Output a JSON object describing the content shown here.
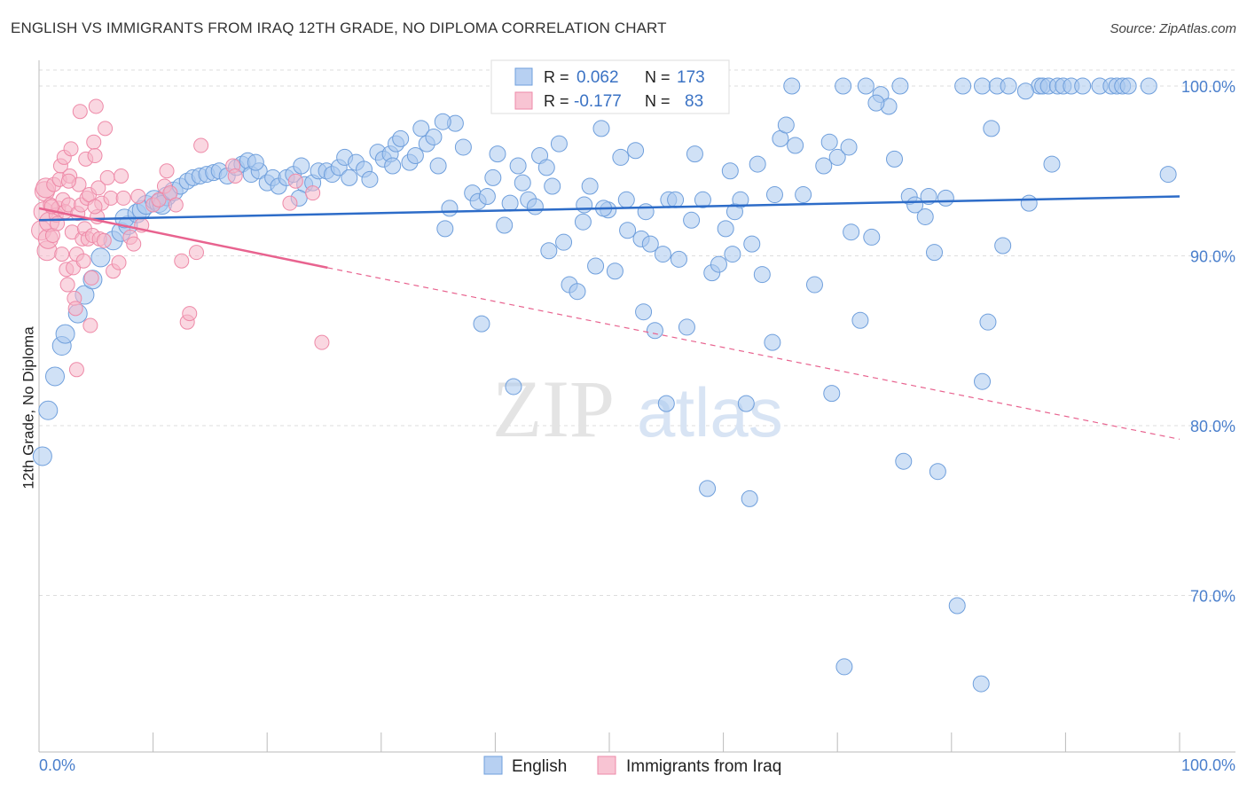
{
  "header": {
    "title": "ENGLISH VS IMMIGRANTS FROM IRAQ 12TH GRADE, NO DIPLOMA CORRELATION CHART",
    "source": "Source: ZipAtlas.com"
  },
  "watermark": {
    "zip": "ZIP",
    "atlas": "atlas"
  },
  "colors": {
    "english_fill": "#a9c8ef",
    "english_stroke": "#6f9fdc",
    "english_line": "#2d6cc8",
    "iraq_fill": "#f6b6c9",
    "iraq_stroke": "#ee8aa8",
    "iraq_line": "#e8638f",
    "tick_label": "#4a7fcc",
    "grid": "#dddddd"
  },
  "legend": {
    "english": {
      "r_label": "R =",
      "r_value": "0.062",
      "n_label": "N =",
      "n_value": "173"
    },
    "iraq": {
      "r_label": "R =",
      "r_value": "-0.177",
      "n_label": "N =",
      "n_value": "83"
    }
  },
  "bottom_legend": {
    "english": "English",
    "iraq": "Immigrants from Iraq"
  },
  "chart_data": {
    "type": "scatter",
    "title": "ENGLISH VS IMMIGRANTS FROM IRAQ 12TH GRADE, NO DIPLOMA CORRELATION CHART",
    "xlabel": "",
    "ylabel": "12th Grade, No Diploma",
    "xlim": [
      0,
      100
    ],
    "ylim": [
      62,
      103
    ],
    "x_tick_labels": [
      "0.0%",
      "100.0%"
    ],
    "y_ticks": [
      {
        "value": 100,
        "label": "100.0%"
      },
      {
        "value": 90,
        "label": "90.0%"
      },
      {
        "value": 80,
        "label": "80.0%"
      },
      {
        "value": 70,
        "label": "70.0%"
      }
    ],
    "series": [
      {
        "name": "English",
        "r": 0.062,
        "n": 173,
        "trend": {
          "x0": 0,
          "y0": 92.1,
          "x1": 100,
          "y1": 93.5
        },
        "points": [
          [
            0.3,
            78.2
          ],
          [
            0.8,
            80.9
          ],
          [
            1.4,
            82.9
          ],
          [
            2.0,
            84.7
          ],
          [
            2.3,
            85.4
          ],
          [
            3.4,
            86.6
          ],
          [
            4.0,
            87.7
          ],
          [
            4.7,
            88.6
          ],
          [
            5.4,
            89.9
          ],
          [
            6.5,
            90.9
          ],
          [
            7.2,
            91.4
          ],
          [
            7.8,
            91.8
          ],
          [
            7.5,
            92.2
          ],
          [
            8.6,
            92.5
          ],
          [
            9.0,
            92.7
          ],
          [
            9.4,
            93.0
          ],
          [
            10.1,
            93.3
          ],
          [
            10.5,
            93.1
          ],
          [
            11.2,
            93.5
          ],
          [
            10.8,
            93.0
          ],
          [
            11.8,
            93.8
          ],
          [
            12.4,
            94.1
          ],
          [
            13.0,
            94.4
          ],
          [
            13.5,
            94.6
          ],
          [
            14.1,
            94.7
          ],
          [
            14.7,
            94.8
          ],
          [
            15.3,
            94.9
          ],
          [
            15.8,
            95.0
          ],
          [
            16.5,
            94.7
          ],
          [
            17.3,
            95.2
          ],
          [
            17.8,
            95.4
          ],
          [
            18.3,
            95.6
          ],
          [
            18.6,
            94.8
          ],
          [
            19.3,
            95.0
          ],
          [
            19.0,
            95.5
          ],
          [
            20.0,
            94.3
          ],
          [
            20.5,
            94.6
          ],
          [
            21.0,
            94.1
          ],
          [
            21.7,
            94.6
          ],
          [
            22.3,
            94.8
          ],
          [
            23.0,
            95.3
          ],
          [
            23.3,
            94.2
          ],
          [
            24.0,
            94.3
          ],
          [
            24.5,
            95.0
          ],
          [
            25.2,
            95.0
          ],
          [
            25.7,
            94.8
          ],
          [
            26.3,
            95.2
          ],
          [
            26.8,
            95.8
          ],
          [
            27.2,
            94.6
          ],
          [
            27.8,
            95.5
          ],
          [
            28.5,
            95.1
          ],
          [
            29.0,
            94.5
          ],
          [
            29.7,
            96.1
          ],
          [
            30.2,
            95.7
          ],
          [
            30.8,
            96.0
          ],
          [
            31.3,
            96.6
          ],
          [
            31.7,
            96.9
          ],
          [
            32.5,
            95.5
          ],
          [
            33.0,
            95.9
          ],
          [
            33.5,
            97.5
          ],
          [
            34.0,
            96.6
          ],
          [
            34.6,
            97.0
          ],
          [
            35.0,
            95.3
          ],
          [
            35.6,
            91.6
          ],
          [
            36.0,
            92.8
          ],
          [
            36.5,
            97.8
          ],
          [
            37.2,
            96.4
          ],
          [
            38.0,
            93.7
          ],
          [
            38.5,
            93.2
          ],
          [
            39.3,
            93.5
          ],
          [
            39.8,
            94.6
          ],
          [
            40.2,
            96.0
          ],
          [
            40.8,
            91.8
          ],
          [
            41.3,
            93.1
          ],
          [
            42.0,
            95.3
          ],
          [
            42.4,
            94.3
          ],
          [
            42.9,
            93.3
          ],
          [
            43.5,
            92.9
          ],
          [
            43.9,
            95.9
          ],
          [
            44.5,
            95.2
          ],
          [
            45.0,
            94.1
          ],
          [
            45.6,
            96.6
          ],
          [
            46.0,
            90.8
          ],
          [
            46.5,
            88.3
          ],
          [
            47.2,
            87.9
          ],
          [
            47.7,
            92.0
          ],
          [
            48.3,
            94.1
          ],
          [
            48.8,
            89.4
          ],
          [
            49.3,
            97.5
          ],
          [
            49.9,
            92.7
          ],
          [
            50.5,
            89.1
          ],
          [
            51.0,
            95.8
          ],
          [
            51.5,
            93.3
          ],
          [
            52.3,
            96.2
          ],
          [
            52.8,
            91.0
          ],
          [
            53.2,
            92.6
          ],
          [
            53.6,
            90.7
          ],
          [
            54.0,
            85.6
          ],
          [
            54.7,
            90.1
          ],
          [
            55.2,
            93.3
          ],
          [
            56.1,
            89.8
          ],
          [
            56.8,
            85.8
          ],
          [
            57.5,
            96.0
          ],
          [
            58.2,
            93.3
          ],
          [
            59.0,
            89.0
          ],
          [
            60.2,
            91.6
          ],
          [
            60.6,
            95.0
          ],
          [
            61.0,
            92.6
          ],
          [
            61.5,
            93.3
          ],
          [
            62.5,
            90.7
          ],
          [
            63.0,
            95.4
          ],
          [
            64.5,
            93.6
          ],
          [
            65.0,
            96.9
          ],
          [
            65.5,
            97.7
          ],
          [
            66.0,
            100.0
          ],
          [
            67.0,
            93.6
          ],
          [
            68.0,
            88.3
          ],
          [
            69.3,
            96.7
          ],
          [
            70.0,
            95.8
          ],
          [
            70.5,
            100.0
          ],
          [
            71.0,
            96.4
          ],
          [
            72.0,
            86.2
          ],
          [
            72.5,
            100.0
          ],
          [
            73.0,
            91.1
          ],
          [
            73.8,
            99.5
          ],
          [
            74.5,
            98.8
          ],
          [
            75.5,
            100.0
          ],
          [
            75.0,
            95.7
          ],
          [
            76.3,
            93.5
          ],
          [
            76.8,
            93.0
          ],
          [
            77.7,
            92.3
          ],
          [
            78.0,
            93.5
          ],
          [
            78.5,
            90.2
          ],
          [
            79.5,
            93.4
          ],
          [
            81.0,
            100.0
          ],
          [
            82.7,
            100.0
          ],
          [
            83.5,
            97.5
          ],
          [
            84.0,
            100.0
          ],
          [
            84.5,
            90.6
          ],
          [
            85.0,
            100.0
          ],
          [
            87.7,
            100.0
          ],
          [
            88.0,
            100.0
          ],
          [
            88.5,
            100.0
          ],
          [
            89.3,
            100.0
          ],
          [
            89.8,
            100.0
          ],
          [
            90.5,
            100.0
          ],
          [
            91.5,
            100.0
          ],
          [
            93.0,
            100.0
          ],
          [
            94.0,
            100.0
          ],
          [
            94.5,
            100.0
          ],
          [
            95.0,
            100.0
          ],
          [
            95.5,
            100.0
          ],
          [
            97.3,
            100.0
          ],
          [
            99.0,
            94.8
          ],
          [
            35.4,
            97.9
          ],
          [
            44.7,
            90.3
          ],
          [
            22.8,
            93.4
          ],
          [
            31.0,
            95.3
          ],
          [
            38.8,
            86.0
          ],
          [
            41.6,
            82.3
          ],
          [
            55.0,
            81.3
          ],
          [
            58.6,
            76.3
          ],
          [
            62.0,
            81.3
          ],
          [
            69.5,
            81.9
          ],
          [
            75.8,
            77.9
          ],
          [
            78.8,
            77.3
          ],
          [
            80.5,
            69.4
          ],
          [
            82.6,
            64.8
          ],
          [
            83.2,
            86.1
          ],
          [
            86.5,
            99.7
          ],
          [
            88.8,
            95.4
          ],
          [
            82.7,
            82.6
          ],
          [
            66.3,
            96.5
          ],
          [
            73.4,
            99.0
          ],
          [
            71.2,
            91.4
          ],
          [
            60.8,
            90.1
          ],
          [
            55.8,
            93.3
          ],
          [
            57.2,
            92.1
          ],
          [
            53.0,
            86.7
          ],
          [
            51.6,
            91.5
          ],
          [
            64.3,
            84.9
          ],
          [
            49.5,
            92.8
          ],
          [
            47.8,
            93.0
          ],
          [
            86.8,
            93.1
          ],
          [
            68.8,
            95.3
          ],
          [
            63.4,
            88.9
          ],
          [
            59.6,
            89.5
          ],
          [
            62.3,
            75.7
          ],
          [
            70.6,
            65.8
          ]
        ]
      },
      {
        "name": "Immigrants from Iraq",
        "r": -0.177,
        "n": 83,
        "trend": {
          "x0": 0,
          "y0": 92.8,
          "x1": 25.3,
          "y1": 89.3,
          "dashed_to": {
            "x": 100,
            "y": 79.2
          }
        },
        "points": [
          [
            0.2,
            91.5
          ],
          [
            0.4,
            92.6
          ],
          [
            0.5,
            93.8
          ],
          [
            0.6,
            94.0
          ],
          [
            0.7,
            90.3
          ],
          [
            0.8,
            91.0
          ],
          [
            0.9,
            92.0
          ],
          [
            1.0,
            93.0
          ],
          [
            1.2,
            91.2
          ],
          [
            1.3,
            94.2
          ],
          [
            1.5,
            92.4
          ],
          [
            1.6,
            91.9
          ],
          [
            1.7,
            92.8
          ],
          [
            1.8,
            94.5
          ],
          [
            1.9,
            95.3
          ],
          [
            2.0,
            90.1
          ],
          [
            2.1,
            93.3
          ],
          [
            2.2,
            95.8
          ],
          [
            2.3,
            92.6
          ],
          [
            2.4,
            89.2
          ],
          [
            2.5,
            88.3
          ],
          [
            2.6,
            93.0
          ],
          [
            2.7,
            94.7
          ],
          [
            2.8,
            96.3
          ],
          [
            2.9,
            91.4
          ],
          [
            3.0,
            89.3
          ],
          [
            3.1,
            87.5
          ],
          [
            3.2,
            86.9
          ],
          [
            3.3,
            90.1
          ],
          [
            3.4,
            92.5
          ],
          [
            3.5,
            94.2
          ],
          [
            3.6,
            98.5
          ],
          [
            3.7,
            93.0
          ],
          [
            3.8,
            91.0
          ],
          [
            3.9,
            89.7
          ],
          [
            4.0,
            91.6
          ],
          [
            4.1,
            95.7
          ],
          [
            4.2,
            93.4
          ],
          [
            4.3,
            91.0
          ],
          [
            4.4,
            93.6
          ],
          [
            4.5,
            85.9
          ],
          [
            4.6,
            88.7
          ],
          [
            4.7,
            91.2
          ],
          [
            4.8,
            96.7
          ],
          [
            4.9,
            95.9
          ],
          [
            5.0,
            98.8
          ],
          [
            5.1,
            92.3
          ],
          [
            5.2,
            94.0
          ],
          [
            5.3,
            91.0
          ],
          [
            5.5,
            93.1
          ],
          [
            5.7,
            90.9
          ],
          [
            5.8,
            97.5
          ],
          [
            6.0,
            94.6
          ],
          [
            6.3,
            93.4
          ],
          [
            6.5,
            89.1
          ],
          [
            7.0,
            89.6
          ],
          [
            7.2,
            94.7
          ],
          [
            7.4,
            93.4
          ],
          [
            8.0,
            91.1
          ],
          [
            8.3,
            90.7
          ],
          [
            8.7,
            93.5
          ],
          [
            9.0,
            91.8
          ],
          [
            10.0,
            93.0
          ],
          [
            10.5,
            93.3
          ],
          [
            11.0,
            94.1
          ],
          [
            11.2,
            95.0
          ],
          [
            11.5,
            93.7
          ],
          [
            12.0,
            93.0
          ],
          [
            12.5,
            89.7
          ],
          [
            13.0,
            86.1
          ],
          [
            13.2,
            86.6
          ],
          [
            13.8,
            90.2
          ],
          [
            14.2,
            96.5
          ],
          [
            17.0,
            95.3
          ],
          [
            17.2,
            94.7
          ],
          [
            22.0,
            93.1
          ],
          [
            22.5,
            94.4
          ],
          [
            24.0,
            93.7
          ],
          [
            24.8,
            84.9
          ],
          [
            3.3,
            83.3
          ],
          [
            1.1,
            92.9
          ],
          [
            2.6,
            94.4
          ],
          [
            4.9,
            92.9
          ]
        ]
      }
    ]
  }
}
